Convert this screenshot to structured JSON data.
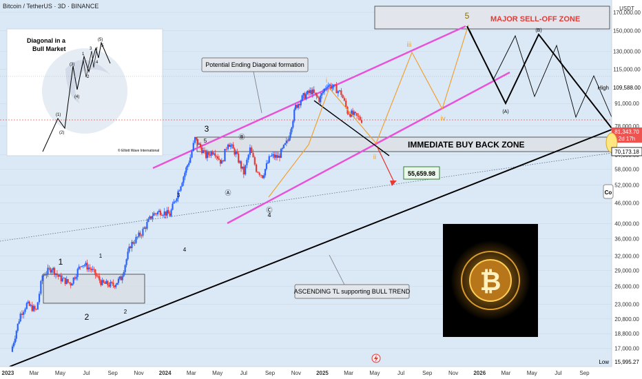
{
  "header": {
    "title": "Bitcoin / TetherUS · 3D · BINANCE"
  },
  "axis": {
    "currency": "USDT",
    "price_ticks": [
      170000,
      150000,
      130000,
      115000,
      91000,
      78000,
      64000,
      58000,
      52000,
      46000,
      40000,
      36000,
      32000,
      29000,
      26000,
      23000,
      20800,
      18800,
      17000
    ],
    "price_tick_labels": [
      "170,000.00",
      "150,000.00",
      "130,000.00",
      "115,000.00",
      "91,000.00",
      "78,000.00",
      "64,000.00",
      "58,000.00",
      "52,000.00",
      "46,000.00",
      "40,000.00",
      "36,000.00",
      "32,000.00",
      "29,000.00",
      "26,000.00",
      "23,000.00",
      "20,800.00",
      "18,800.00",
      "17,000.00"
    ],
    "time_ticks": [
      {
        "label": "2023",
        "t": 2023.0,
        "bold": true
      },
      {
        "label": "Mar",
        "t": 2023.167
      },
      {
        "label": "May",
        "t": 2023.333
      },
      {
        "label": "Jul",
        "t": 2023.5
      },
      {
        "label": "Sep",
        "t": 2023.667
      },
      {
        "label": "Nov",
        "t": 2023.833
      },
      {
        "label": "2024",
        "t": 2024.0,
        "bold": true
      },
      {
        "label": "Mar",
        "t": 2024.167
      },
      {
        "label": "May",
        "t": 2024.333
      },
      {
        "label": "Jul",
        "t": 2024.5
      },
      {
        "label": "Sep",
        "t": 2024.667
      },
      {
        "label": "Nov",
        "t": 2024.833
      },
      {
        "label": "2025",
        "t": 2025.0,
        "bold": true
      },
      {
        "label": "Mar",
        "t": 2025.167
      },
      {
        "label": "May",
        "t": 2025.333
      },
      {
        "label": "Jul",
        "t": 2025.5
      },
      {
        "label": "Sep",
        "t": 2025.667
      },
      {
        "label": "Nov",
        "t": 2025.833
      },
      {
        "label": "2026",
        "t": 2026.0,
        "bold": true
      },
      {
        "label": "Mar",
        "t": 2026.167
      },
      {
        "label": "May",
        "t": 2026.333
      },
      {
        "label": "Jul",
        "t": 2026.5
      },
      {
        "label": "Sep",
        "t": 2026.667
      }
    ]
  },
  "price_tags": {
    "high_label": "High",
    "high_value": "109,588.00",
    "current_value": "81,343.70",
    "countdown": "2d 17h",
    "zone_value": "70,173.18",
    "low_label": "Low",
    "low_value": "15,995.27",
    "edge_label": "Co"
  },
  "annotations": {
    "sell_zone": "MAJOR SELL-OFF ZONE",
    "buy_zone": "IMMEDIATE BUY BACK ZONE",
    "ending_diagonal": "Potential Ending Diagonal formation",
    "ascending_tl": "ASCENDING TL supporting BULL TREND",
    "target": "55,659.98"
  },
  "inset": {
    "title_line1": "Diagonal in a",
    "title_line2": "Bull Market",
    "credit": "© Elliott Wave International",
    "labels": [
      "(1)",
      "(2)",
      "(3)",
      "(4)",
      "(5)",
      "1",
      "2",
      "3",
      "4",
      "5"
    ]
  },
  "wave_labels": [
    "1",
    "2",
    "1",
    "2",
    "3",
    "4",
    "3",
    "5",
    "Ⓑ",
    "Ⓐ",
    "Ⓒ",
    "4",
    "i",
    "ii",
    "iii",
    "iv",
    "5",
    "(A)",
    "(B)"
  ],
  "colors": {
    "up": "#2962ff",
    "down": "#e53935",
    "channel": "#e852d8",
    "projection": "#f0a030",
    "sell": "#e53935"
  },
  "chart_data": {
    "type": "candlestick",
    "title": "Bitcoin / TetherUS · 3D · BINANCE",
    "y_scale": "log",
    "ylim": [
      15000,
      185000
    ],
    "xlim": [
      2022.95,
      2026.84
    ],
    "series": [
      {
        "name": "BTCUSDT",
        "points": [
          [
            2023.02,
            16600
          ],
          [
            2023.08,
            21500
          ],
          [
            2023.12,
            23000
          ],
          [
            2023.18,
            22000
          ],
          [
            2023.22,
            28000
          ],
          [
            2023.28,
            29500
          ],
          [
            2023.33,
            27500
          ],
          [
            2023.4,
            26500
          ],
          [
            2023.47,
            30500
          ],
          [
            2023.53,
            29200
          ],
          [
            2023.6,
            26500
          ],
          [
            2023.67,
            26200
          ],
          [
            2023.72,
            27500
          ],
          [
            2023.78,
            34500
          ],
          [
            2023.85,
            37500
          ],
          [
            2023.92,
            42500
          ],
          [
            2023.97,
            43500
          ],
          [
            2024.03,
            42500
          ],
          [
            2024.1,
            52500
          ],
          [
            2024.16,
            63000
          ],
          [
            2024.19,
            71500
          ],
          [
            2024.26,
            63500
          ],
          [
            2024.31,
            66000
          ],
          [
            2024.36,
            60500
          ],
          [
            2024.4,
            70000
          ],
          [
            2024.45,
            64500
          ],
          [
            2024.5,
            56500
          ],
          [
            2024.54,
            66500
          ],
          [
            2024.58,
            58000
          ],
          [
            2024.62,
            55500
          ],
          [
            2024.67,
            63500
          ],
          [
            2024.72,
            63000
          ],
          [
            2024.78,
            70500
          ],
          [
            2024.83,
            89000
          ],
          [
            2024.88,
            95500
          ],
          [
            2024.93,
            99000
          ],
          [
            2024.98,
            93500
          ],
          [
            2025.03,
            104000
          ],
          [
            2025.08,
            101000
          ],
          [
            2025.12,
            97500
          ],
          [
            2025.16,
            86000
          ],
          [
            2025.21,
            83500
          ],
          [
            2025.25,
            81343.7
          ]
        ]
      }
    ],
    "levels": {
      "all_time_high": 109588.0,
      "current": 81343.7,
      "buy_zone_top": 76500,
      "buy_zone_bottom": 70173.18,
      "target": 55659.98,
      "low": 15995.27
    },
    "zones": [
      {
        "label": "MAJOR SELL-OFF ZONE",
        "low": 168000,
        "high": 190000
      },
      {
        "label": "IMMEDIATE BUY BACK ZONE",
        "low": 70173.18,
        "high": 76500
      }
    ]
  }
}
